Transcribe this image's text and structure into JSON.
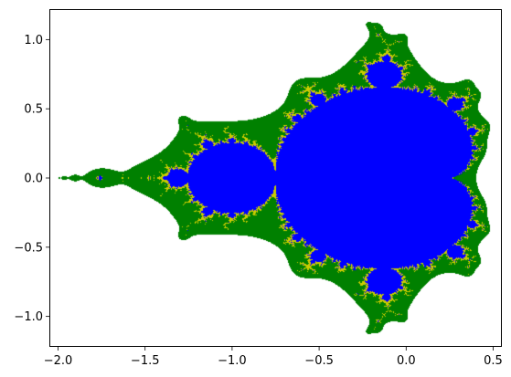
{
  "chart_data": {
    "type": "scatter",
    "title": "",
    "xlabel": "",
    "ylabel": "",
    "xlim": [
      -2.05,
      0.55
    ],
    "ylim": [
      -1.22,
      1.22
    ],
    "x_ticks": [
      -2.0,
      -1.5,
      -1.0,
      -0.5,
      0.0,
      0.5
    ],
    "x_tick_labels": [
      "−2.0",
      "−1.5",
      "−1.0",
      "−0.5",
      "0.0",
      "0.5"
    ],
    "y_ticks": [
      1.0,
      0.5,
      0.0,
      -0.5,
      -1.0
    ],
    "y_tick_labels": [
      "1.0",
      "0.5",
      "0.0",
      "−0.5",
      "−1.0"
    ],
    "grid": false,
    "legend": "none",
    "colors": {
      "inside_set": "#0000ff",
      "boundary_band": "#cccc00",
      "outer_band": "#008000",
      "background": "#ffffff"
    },
    "regions": [
      {
        "region": "inside_set",
        "color": "#0000ff"
      },
      {
        "region": "boundary_band",
        "color": "#cccc00"
      },
      {
        "region": "outer_band",
        "color": "#008000"
      }
    ]
  }
}
